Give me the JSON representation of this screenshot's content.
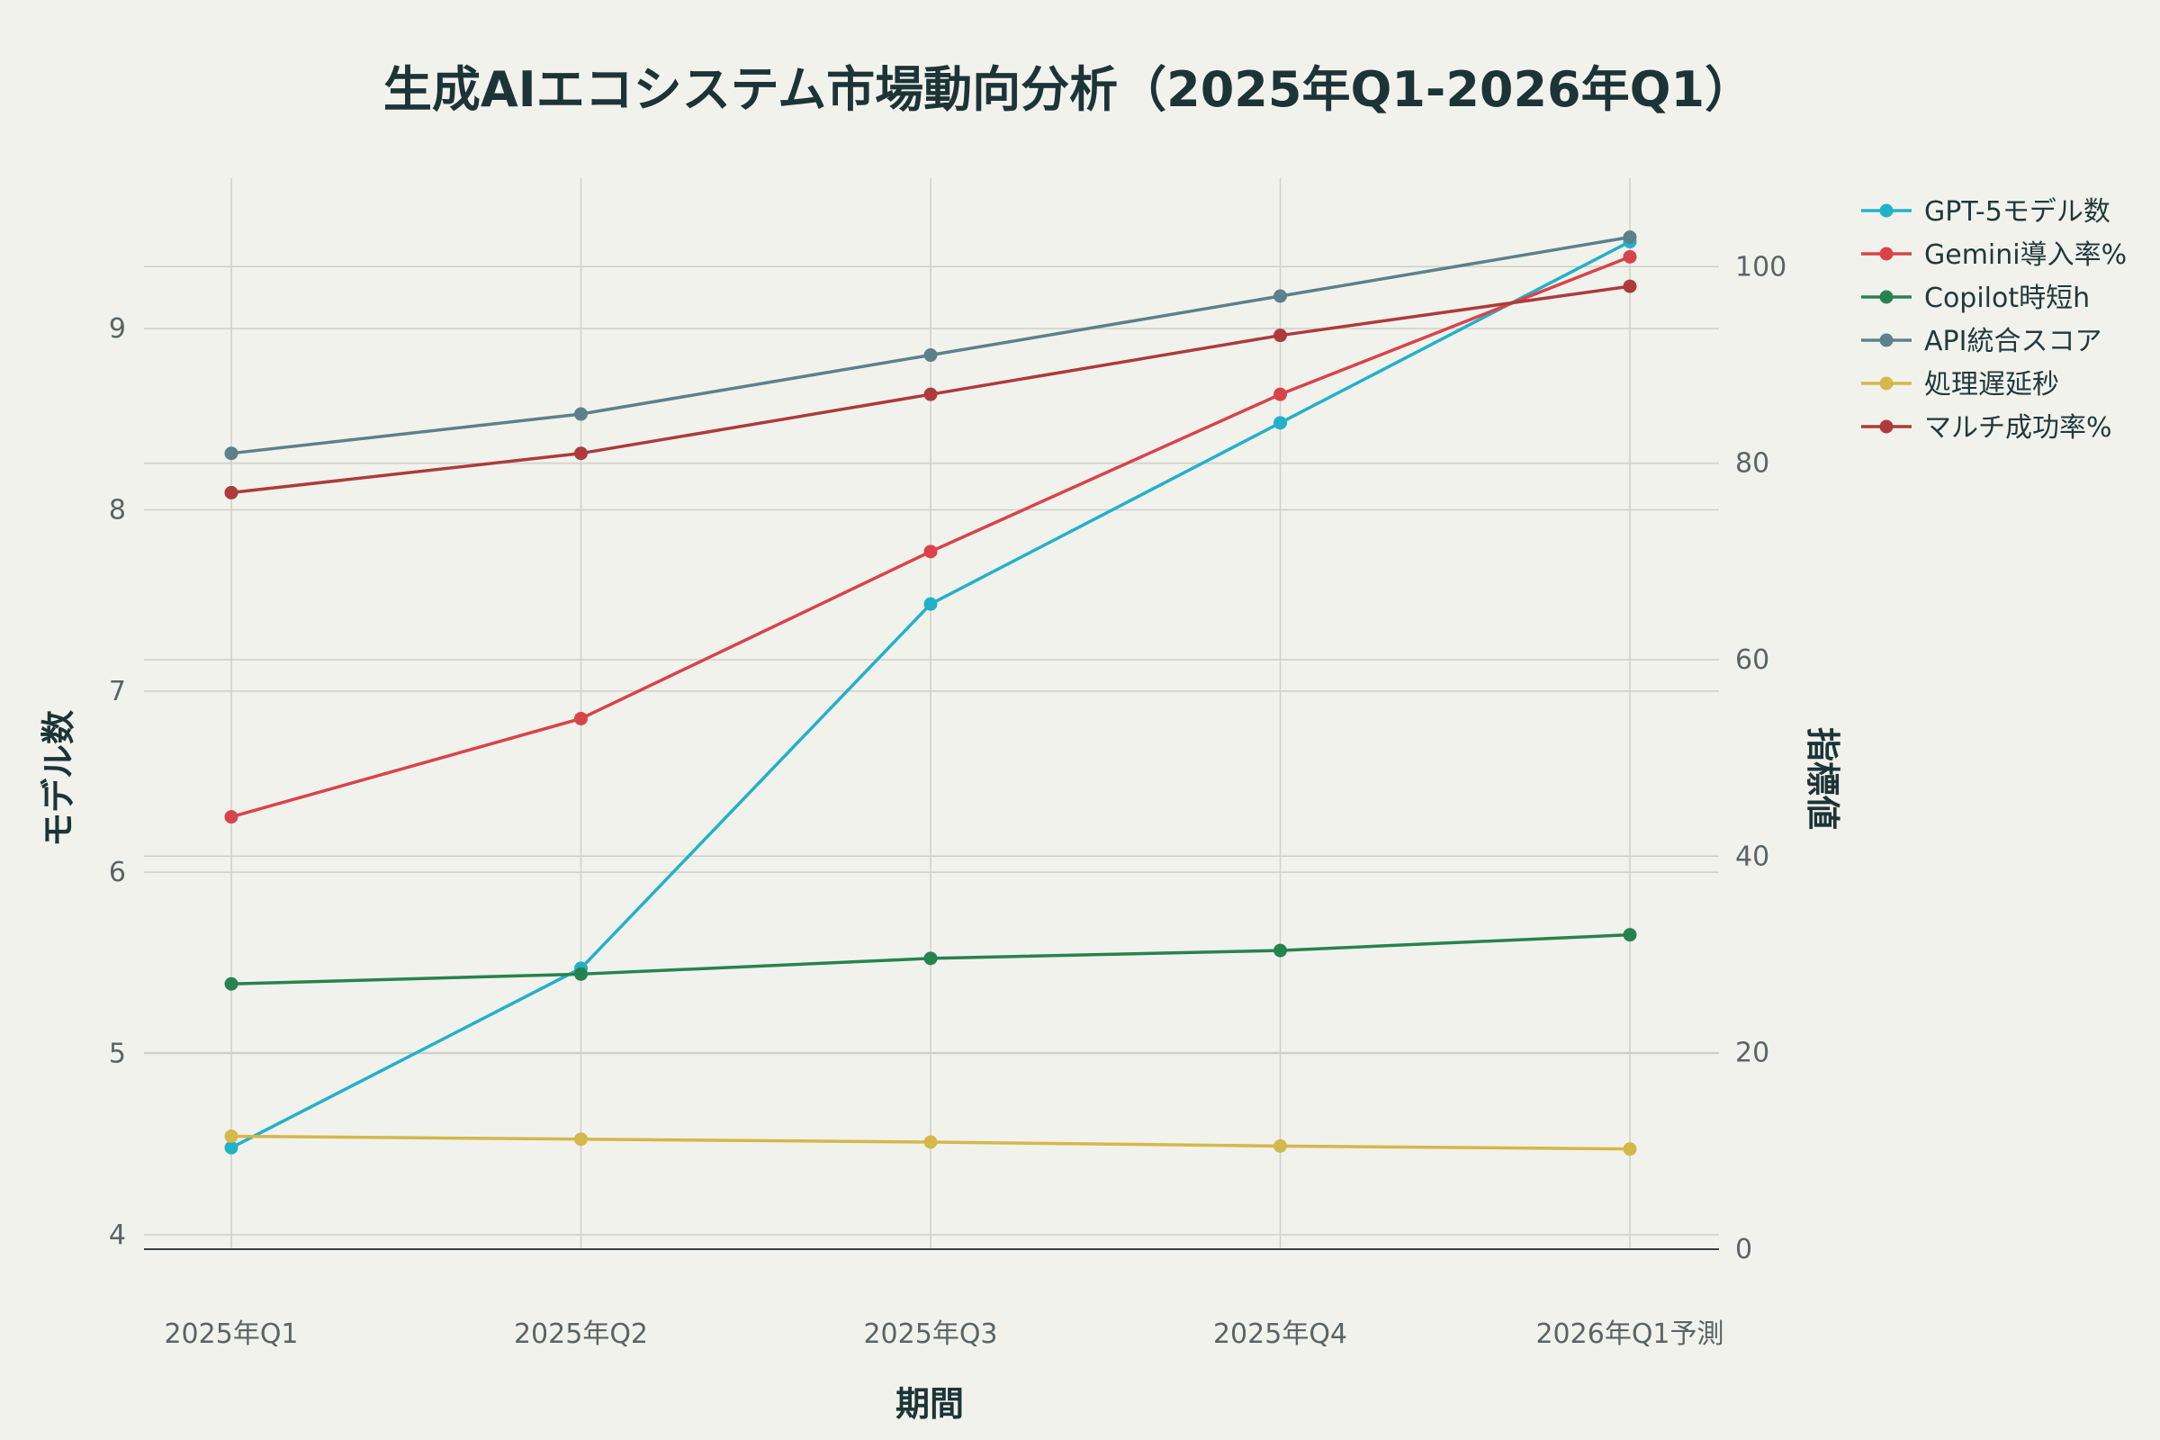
{
  "chart_data": {
    "type": "line",
    "title": "生成AIエコシステム市場動向分析（2025年Q1-2026年Q1）",
    "xlabel": "期間",
    "ylabel_left": "モデル数",
    "ylabel_right": "指標値",
    "categories": [
      "2025年Q1",
      "2025年Q2",
      "2025年Q3",
      "2025年Q4",
      "2026年Q1予測"
    ],
    "y_left_range": [
      3.92,
      9.83
    ],
    "y_left_ticks": [
      4,
      5,
      6,
      7,
      8,
      9
    ],
    "y_right_range": [
      0,
      109
    ],
    "y_right_ticks": [
      0,
      20,
      40,
      60,
      80,
      100
    ],
    "grid": true,
    "legend_position": "top-right",
    "series": [
      {
        "name": "GPT-5モデル数",
        "axis": "left",
        "color": "#22b1c9",
        "values": [
          4.48,
          5.47,
          7.48,
          8.48,
          9.48
        ]
      },
      {
        "name": "Gemini導入率%",
        "axis": "right",
        "color": "#d9434a",
        "values": [
          44,
          54,
          71,
          87,
          101
        ]
      },
      {
        "name": "Copilot時短h",
        "axis": "right",
        "color": "#26834f",
        "values": [
          27,
          28,
          29.6,
          30.4,
          32
        ]
      },
      {
        "name": "API統合スコア",
        "axis": "right",
        "color": "#5c818a",
        "values": [
          81,
          85,
          91,
          97,
          103
        ]
      },
      {
        "name": "処理遅延秒",
        "axis": "right",
        "color": "#d4b84a",
        "values": [
          11.5,
          11.2,
          10.9,
          10.5,
          10.2
        ]
      },
      {
        "name": "マルチ成功率%",
        "axis": "right",
        "color": "#ad3b3b",
        "values": [
          77,
          81,
          87,
          93,
          98
        ]
      }
    ]
  }
}
